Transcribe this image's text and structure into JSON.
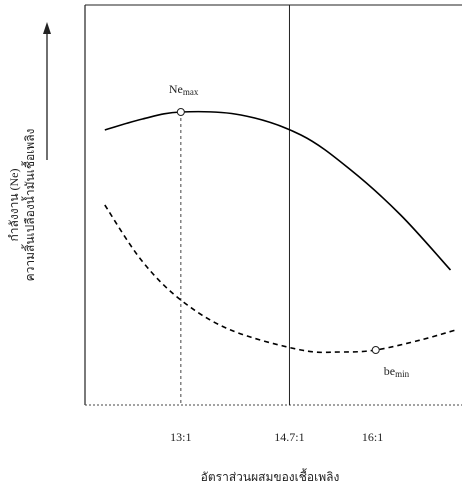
{
  "chart_data": {
    "type": "line",
    "xlabel": "อัตราส่วนผสมของเชื้อเพลิง",
    "ylabel": [
      "กำลังงาน (Ne)",
      "ความสิ้นเปลืองน้ำมันเชื้อเพลิง"
    ],
    "xlim": [
      11.5,
      17.4
    ],
    "ylim": [
      0,
      100
    ],
    "xticks": [
      {
        "value": 13,
        "label": "13:1"
      },
      {
        "value": 14.7,
        "label": "14.7:1"
      },
      {
        "value": 16,
        "label": "16:1"
      }
    ],
    "series": [
      {
        "color": "#000000",
        "line_style": "solid",
        "x": [
          11.81,
          12.4,
          13,
          13.94,
          14.88,
          15.66,
          16.44,
          17.22
        ],
        "values": [
          68.75,
          71.5,
          73.25,
          72.5,
          67.5,
          58.75,
          47.5,
          33.75
        ]
      },
      {
        "color": "#000000",
        "line_style": "dashed",
        "x": [
          11.81,
          12.38,
          13,
          13.78,
          14.88,
          15.5,
          16.05,
          16.75,
          17.3
        ],
        "values": [
          50,
          36.25,
          26.25,
          18.75,
          13.75,
          13.25,
          13.75,
          16.25,
          18.75
        ]
      }
    ],
    "annotations": [
      {
        "text": "Ne",
        "sub": "max",
        "series": 0,
        "index": 2
      },
      {
        "text": "be",
        "sub": "min",
        "series": 1,
        "index": 6
      }
    ]
  }
}
